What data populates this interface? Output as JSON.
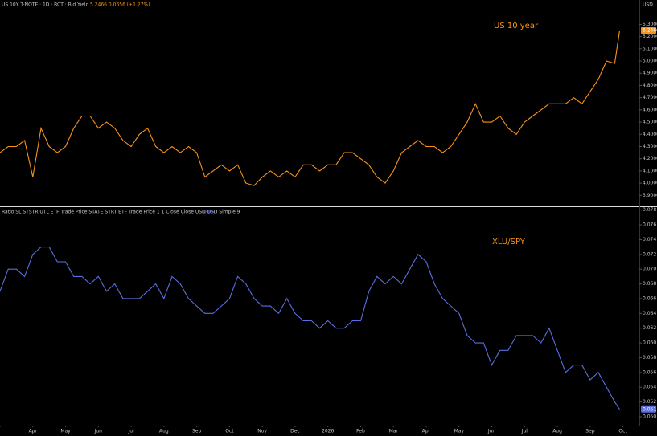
{
  "chart_data": [
    {
      "type": "line",
      "title": "US 10Y T-NOTE · 1D · RCT · Bid Yield",
      "legend_values": "5.2466 0.0656 (+1.27%)",
      "annotation": "US 10 year",
      "price_tag": "5.2466",
      "currency": "USD",
      "color": "#f7931a",
      "grid": false,
      "xlim": [
        0,
        19.5
      ],
      "ylim": [
        3.81,
        5.5
      ],
      "yticks": [
        {
          "value": 5.3,
          "label": "5.3000"
        },
        {
          "value": 5.2,
          "label": "5.2000"
        },
        {
          "value": 5.1,
          "label": "5.1000"
        },
        {
          "value": 5.0,
          "label": "5.0000"
        },
        {
          "value": 4.9,
          "label": "4.9000"
        },
        {
          "value": 4.8,
          "label": "4.8000"
        },
        {
          "value": 4.7,
          "label": "4.7000"
        },
        {
          "value": 4.6,
          "label": "4.6000"
        },
        {
          "value": 4.5,
          "label": "4.5000"
        },
        {
          "value": 4.4,
          "label": "4.4000"
        },
        {
          "value": 4.3,
          "label": "4.3000"
        },
        {
          "value": 4.2,
          "label": "4.2000"
        },
        {
          "value": 4.1,
          "label": "4.1000"
        },
        {
          "value": 4.0,
          "label": "4.0000"
        },
        {
          "value": 3.9,
          "label": "3.9000"
        }
      ],
      "x": [
        0,
        0.25,
        0.5,
        0.75,
        1,
        1.25,
        1.5,
        1.75,
        2,
        2.25,
        2.5,
        2.75,
        3,
        3.25,
        3.5,
        3.75,
        4,
        4.25,
        4.5,
        4.75,
        5,
        5.25,
        5.5,
        5.75,
        6,
        6.25,
        6.5,
        6.75,
        7,
        7.25,
        7.5,
        7.75,
        8,
        8.25,
        8.5,
        8.75,
        9,
        9.25,
        9.5,
        9.75,
        10,
        10.25,
        10.5,
        10.75,
        11,
        11.25,
        11.5,
        11.75,
        12,
        12.25,
        12.5,
        12.75,
        13,
        13.25,
        13.5,
        13.75,
        14,
        14.25,
        14.5,
        14.75,
        15,
        15.25,
        15.5,
        15.75,
        16,
        16.25,
        16.5,
        16.75,
        17,
        17.25,
        17.5,
        17.75,
        18,
        18.25,
        18.5,
        18.75,
        18.9
      ],
      "values": [
        4.25,
        4.3,
        4.3,
        4.35,
        4.05,
        4.45,
        4.3,
        4.25,
        4.3,
        4.45,
        4.55,
        4.55,
        4.45,
        4.5,
        4.45,
        4.35,
        4.3,
        4.4,
        4.45,
        4.3,
        4.25,
        4.3,
        4.25,
        4.3,
        4.25,
        4.05,
        4.1,
        4.15,
        4.1,
        4.15,
        4.0,
        3.98,
        4.05,
        4.1,
        4.05,
        4.1,
        4.05,
        4.15,
        4.15,
        4.1,
        4.15,
        4.15,
        4.25,
        4.25,
        4.2,
        4.15,
        4.05,
        4.0,
        4.1,
        4.25,
        4.3,
        4.35,
        4.3,
        4.3,
        4.25,
        4.3,
        4.4,
        4.5,
        4.65,
        4.5,
        4.5,
        4.55,
        4.45,
        4.4,
        4.5,
        4.55,
        4.6,
        4.65,
        4.65,
        4.65,
        4.7,
        4.65,
        4.75,
        4.85,
        5.0,
        4.98,
        5.25
      ]
    },
    {
      "type": "line",
      "title": "Ratio SL STSTR UTL ETF Trade Price STATE STRT ETF Trade Price 1 1 Close Close USD USD Simple 9",
      "legend_values": "0.051",
      "annotation": "XLU/SPY",
      "price_tag": "0.051",
      "color": "#5b6ee1",
      "grid": false,
      "xlim": [
        0,
        19.5
      ],
      "ylim": [
        0.0488,
        0.0784
      ],
      "xticks": [
        {
          "value": 0,
          "label": "r"
        },
        {
          "value": 1,
          "label": "Apr"
        },
        {
          "value": 2,
          "label": "May"
        },
        {
          "value": 3,
          "label": "Jun"
        },
        {
          "value": 4,
          "label": "Jul"
        },
        {
          "value": 5,
          "label": "Aug"
        },
        {
          "value": 6,
          "label": "Sep"
        },
        {
          "value": 7,
          "label": "Oct"
        },
        {
          "value": 8,
          "label": "Nov"
        },
        {
          "value": 9,
          "label": "Dec"
        },
        {
          "value": 10,
          "label": "2026"
        },
        {
          "value": 11,
          "label": "Feb"
        },
        {
          "value": 12,
          "label": "Mar"
        },
        {
          "value": 13,
          "label": "Apr"
        },
        {
          "value": 14,
          "label": "May"
        },
        {
          "value": 15,
          "label": "Jun"
        },
        {
          "value": 16,
          "label": "Jul"
        },
        {
          "value": 17,
          "label": "Aug"
        },
        {
          "value": 18,
          "label": "Sep"
        },
        {
          "value": 19,
          "label": "Oct"
        }
      ],
      "yticks": [
        0.078,
        0.076,
        0.074,
        0.072,
        {
          "value": 0.07,
          "label": "0.070"
        },
        0.068,
        0.066,
        0.064,
        0.062,
        {
          "value": 0.06,
          "label": "0.060"
        },
        0.058,
        0.056,
        0.054,
        0.052,
        {
          "value": 0.05,
          "label": "0.050"
        }
      ],
      "x": [
        0,
        0.25,
        0.5,
        0.75,
        1,
        1.25,
        1.5,
        1.75,
        2,
        2.25,
        2.5,
        2.75,
        3,
        3.25,
        3.5,
        3.75,
        4,
        4.25,
        4.5,
        4.75,
        5,
        5.25,
        5.5,
        5.75,
        6,
        6.25,
        6.5,
        6.75,
        7,
        7.25,
        7.5,
        7.75,
        8,
        8.25,
        8.5,
        8.75,
        9,
        9.25,
        9.5,
        9.75,
        10,
        10.25,
        10.5,
        10.75,
        11,
        11.25,
        11.5,
        11.75,
        12,
        12.25,
        12.5,
        12.75,
        13,
        13.25,
        13.5,
        13.75,
        14,
        14.25,
        14.5,
        14.75,
        15,
        15.25,
        15.5,
        15.75,
        16,
        16.25,
        16.5,
        16.75,
        17,
        17.25,
        17.5,
        17.75,
        18,
        18.25,
        18.5,
        18.75,
        18.9
      ],
      "values": [
        0.067,
        0.07,
        0.07,
        0.069,
        0.072,
        0.073,
        0.073,
        0.071,
        0.071,
        0.069,
        0.069,
        0.068,
        0.069,
        0.067,
        0.068,
        0.066,
        0.066,
        0.066,
        0.067,
        0.068,
        0.066,
        0.069,
        0.068,
        0.066,
        0.065,
        0.064,
        0.064,
        0.065,
        0.066,
        0.069,
        0.068,
        0.066,
        0.065,
        0.065,
        0.064,
        0.066,
        0.064,
        0.063,
        0.063,
        0.062,
        0.063,
        0.062,
        0.062,
        0.063,
        0.063,
        0.067,
        0.069,
        0.068,
        0.069,
        0.068,
        0.07,
        0.072,
        0.071,
        0.068,
        0.066,
        0.065,
        0.064,
        0.061,
        0.06,
        0.06,
        0.057,
        0.059,
        0.059,
        0.061,
        0.061,
        0.061,
        0.06,
        0.062,
        0.059,
        0.056,
        0.057,
        0.057,
        0.055,
        0.056,
        0.054,
        0.052,
        0.051
      ]
    }
  ]
}
